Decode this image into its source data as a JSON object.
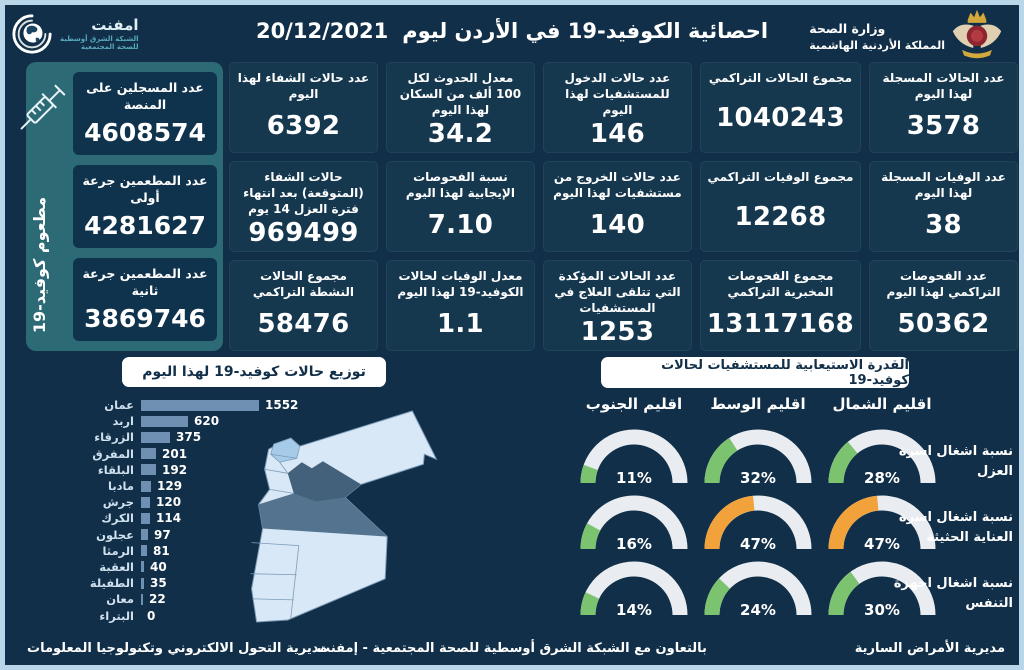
{
  "colors": {
    "page_bg": "#112f48",
    "page_border": "#b9d6e9",
    "card_bg": "#16384f",
    "sidebar_bg": "#2c6a75",
    "sidebar_box_bg": "#10334d",
    "bar_color": "#6f90b2",
    "gauge_green": "#7cc36f",
    "gauge_orange": "#f2a23a",
    "gauge_track": "#e9edf1",
    "title_box_bg": "#ffffff",
    "title_box_text": "#112f48"
  },
  "header": {
    "title": "احصائية الكوفيد-19 في الأردن ليوم",
    "date": "20/12/2021",
    "logo": {
      "name": "امفنت",
      "sub1": "الشبكة الشرق أوسطية",
      "sub2": "للصحة المجتمعية"
    },
    "ministry": {
      "line1": "وزارة الصحة",
      "line2": "المملكة الأردنية الهاشمية"
    }
  },
  "vaccination": {
    "vertical_label": "مطعوم كوفيد-19",
    "boxes": [
      {
        "label": "عدد المسجلين على المنصة",
        "value": "4608574"
      },
      {
        "label": "عدد المطعمين جرعة أولى",
        "value": "4281627"
      },
      {
        "label": "عدد المطعمين جرعة ثانية",
        "value": "3869746"
      }
    ]
  },
  "stat_cards": [
    {
      "label": "عدد الحالات المسجلة لهذا اليوم",
      "value": "3578"
    },
    {
      "label": "مجموع الحالات التراكمي",
      "value": "1040243"
    },
    {
      "label": "عدد حالات الدخول للمستشفيات لهذا اليوم",
      "value": "146"
    },
    {
      "label": "معدل الحدوث لكل 100 ألف من السكان لهذا اليوم",
      "value": "34.2"
    },
    {
      "label": "عدد حالات الشفاء لهذا اليوم",
      "value": "6392"
    },
    {
      "label": "عدد الوفيات المسجلة لهذا اليوم",
      "value": "38"
    },
    {
      "label": "مجموع الوفيات التراكمي",
      "value": "12268"
    },
    {
      "label": "عدد حالات الخروج من مستشفيات لهذا اليوم",
      "value": "140"
    },
    {
      "label": "نسبة الفحوصات الإيجابية لهذا اليوم",
      "value": "7.10"
    },
    {
      "label": "حالات الشفاء (المتوقعة) بعد انتهاء فترة العزل 14 يوم",
      "value": "969499"
    },
    {
      "label": "عدد الفحوصات التراكمي لهذا اليوم",
      "value": "50362"
    },
    {
      "label": "مجموع الفحوصات المخبرية التراكمي",
      "value": "13117168"
    },
    {
      "label": "عدد الحالات المؤكدة التي تتلقى العلاج في المستشفيات",
      "value": "1253"
    },
    {
      "label": "معدل الوفيات لحالات الكوفيد-19 لهذا اليوم",
      "value": "1.1"
    },
    {
      "label": "مجموع الحالات النشطة التراكمي",
      "value": "58476"
    }
  ],
  "chart_data": [
    {
      "type": "bar",
      "orientation": "horizontal",
      "title": "توزيع حالات كوفيد-19 لهذا اليوم",
      "categories": [
        "عمان",
        "اربد",
        "الزرقاء",
        "المفرق",
        "البلقاء",
        "مادبا",
        "جرش",
        "الكرك",
        "عجلون",
        "الرمثا",
        "العقبة",
        "الطفيلة",
        "معان",
        "البتراء"
      ],
      "values": [
        1552,
        620,
        375,
        201,
        192,
        129,
        120,
        114,
        97,
        81,
        40,
        35,
        22,
        0
      ],
      "xlim": [
        0,
        1552
      ],
      "bar_color": "#6f90b2",
      "legend": "none",
      "grid": "off"
    },
    {
      "type": "gauge-grid",
      "title": "القدرة الاستيعابية للمستشفيات لحالات كوفيد-19",
      "columns": [
        "اقليم الجنوب",
        "اقليم الوسط",
        "اقليم الشمال"
      ],
      "rows": [
        {
          "label": "نسبة اشغال اسرة العزل",
          "values": [
            11,
            32,
            28
          ],
          "colors": [
            "green",
            "green",
            "green"
          ]
        },
        {
          "label": "نسبة اشغال اسرة العناية الحثيثة",
          "values": [
            16,
            47,
            47
          ],
          "colors": [
            "green",
            "orange",
            "orange"
          ]
        },
        {
          "label": "نسبة اشغال اجهزة التنفس",
          "values": [
            14,
            24,
            30
          ],
          "colors": [
            "green",
            "green",
            "green"
          ]
        }
      ],
      "unit": "%",
      "range": [
        0,
        100
      ]
    }
  ],
  "footer": {
    "left": "مديرية التحول الالكتروني وتكنولوجيا المعلومات",
    "center": "بالتعاون مع الشبكة الشرق أوسطية للصحة المجتمعية - إمفنت",
    "right": "مديرية الأمراض السارية"
  }
}
